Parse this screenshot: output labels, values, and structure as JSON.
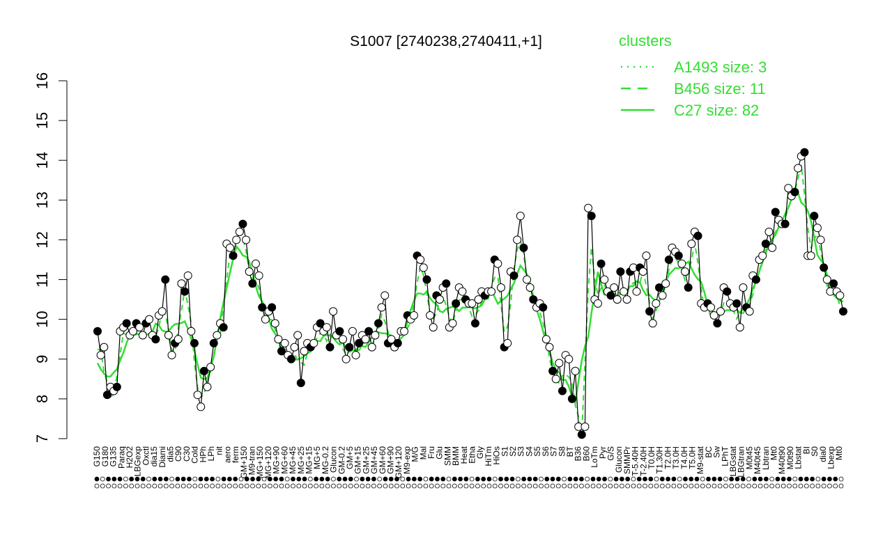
{
  "chart_data": {
    "type": "line",
    "title": "S1007 [2740238,2740411,+1]",
    "xlabel": "",
    "ylabel": "",
    "ylim": [
      7,
      16
    ],
    "yticks": [
      7,
      8,
      9,
      10,
      11,
      12,
      13,
      14,
      15,
      16
    ],
    "legend": {
      "title": "clusters",
      "position": "top-right",
      "color": "#33dd33",
      "entries": [
        {
          "label": "A1493 size: 3",
          "style": "dotted"
        },
        {
          "label": "B456 size: 11",
          "style": "dashed"
        },
        {
          "label": "C27 size: 82",
          "style": "solid"
        }
      ]
    },
    "tick_labels": [
      "G150",
      "G180",
      "G135",
      "Paraq",
      "H2O2",
      "LBGexp",
      "Oxctl",
      "dia15",
      "Diami",
      "dia5",
      "C90",
      "C30",
      "Cold",
      "HPh",
      "LPh",
      "nit",
      "aero",
      "ferm",
      "GM+150",
      "M9-tran",
      "MG+150",
      "MG+120",
      "MG+90",
      "MG+60",
      "MG+45",
      "MG+25",
      "MG+15",
      "MG+5",
      "MG-0.2",
      "Glucon",
      "GM-0.2",
      "GM+5",
      "GM+15",
      "GM+25",
      "GM+45",
      "GM+60",
      "GM+90",
      "GM+120",
      "M9-exp",
      "M/G",
      "Mal",
      "Fru",
      "Glu",
      "SMM",
      "BMM",
      "Heat",
      "Etha",
      "Gly",
      "HiTm",
      "HiOs",
      "S1",
      "S2",
      "S3",
      "S4",
      "S5",
      "S6",
      "S7",
      "S8",
      "BT",
      "B36",
      "B60",
      "LoTm",
      "Pyr",
      "G/S",
      "Glucon",
      "SMMPr",
      "T-5.40H",
      "T-2.40H",
      "T0.0H",
      "T1.30H",
      "T2.0H",
      "T3.0H",
      "T4.0H",
      "T5.0H",
      "M9-stat",
      "BC",
      "Sw",
      "LPhT",
      "LBGstat",
      "LBGtran",
      "M0t45",
      "M40t45",
      "Lbtran",
      "Mt0",
      "M40t90",
      "M0t90",
      "Lbstat",
      "BI",
      "S0",
      "dia0",
      "Lbexp",
      "Mt0"
    ],
    "series": [
      {
        "style": "points",
        "values": [
          9.7,
          9.1,
          9.3,
          8.1,
          8.3,
          8.2,
          8.3,
          9.7,
          9.8,
          9.9,
          9.6,
          9.7,
          9.9,
          9.8,
          9.6,
          9.9,
          10.0,
          9.6,
          9.5,
          10.1,
          10.2,
          11.0,
          9.6,
          9.1,
          9.4,
          9.5,
          10.9,
          10.7,
          11.1,
          9.7,
          9.4,
          8.1,
          7.8,
          8.7,
          8.3,
          8.8,
          9.4,
          9.6,
          9.9,
          9.8,
          11.9,
          11.8,
          11.6,
          12.0,
          12.2,
          12.4,
          12.0,
          11.2,
          10.9,
          11.4,
          11.1,
          10.3,
          10.0,
          10.2,
          10.3,
          9.9,
          9.5,
          9.2,
          9.4,
          9.1,
          9.0,
          9.3,
          9.6,
          8.4,
          9.2,
          9.4,
          9.3,
          9.4,
          9.8,
          9.9,
          9.7,
          9.8,
          9.3,
          10.2,
          9.6,
          9.7,
          9.5,
          9.0,
          9.3,
          9.7,
          9.1,
          9.4,
          9.6,
          9.5,
          9.7,
          9.3,
          9.6,
          9.9,
          10.3,
          10.6,
          9.4,
          9.5,
          9.3,
          9.4,
          9.7,
          9.7,
          10.1,
          10.0,
          10.1,
          11.6,
          11.5,
          11.3,
          11.0,
          10.1,
          9.8,
          10.6,
          10.5,
          10.8,
          10.9,
          9.8,
          9.9,
          10.4,
          10.8,
          10.7,
          10.5,
          10.4,
          10.4,
          9.9,
          10.5,
          10.7,
          10.6,
          10.7,
          10.7,
          11.5,
          11.4,
          10.8,
          9.3,
          9.4,
          11.2,
          11.1,
          12.0,
          12.6,
          11.8,
          11.0,
          10.8,
          10.5,
          10.3,
          10.4,
          10.3,
          9.5,
          9.3,
          8.7,
          8.5,
          8.9,
          8.2,
          9.1,
          9.0,
          8.0,
          8.7,
          7.3,
          7.1,
          7.3,
          12.8,
          12.6,
          10.5,
          10.4,
          11.4,
          11.0,
          10.7,
          10.6,
          10.8,
          10.5,
          11.2,
          10.7,
          10.5,
          11.2,
          11.3,
          10.7,
          11.3,
          11.2,
          11.6,
          10.2,
          9.9,
          10.4,
          10.8,
          10.6,
          10.9,
          11.5,
          11.8,
          11.7,
          11.6,
          11.4,
          11.2,
          10.8,
          11.9,
          12.2,
          12.1,
          10.4,
          10.3,
          10.4,
          10.3,
          10.1,
          9.9,
          10.2,
          10.8,
          10.7,
          10.4,
          10.3,
          10.4,
          9.8,
          10.8,
          10.3,
          10.2,
          11.1,
          11.0,
          11.5,
          11.6,
          11.9,
          12.2,
          11.8,
          12.7,
          12.5,
          12.4,
          12.4,
          13.3,
          13.1,
          13.2,
          13.8,
          14.1,
          14.2,
          11.6,
          11.6,
          12.6,
          12.3,
          12.0,
          11.3,
          11.0,
          10.7,
          10.9,
          10.7,
          10.6,
          10.2
        ]
      }
    ]
  }
}
